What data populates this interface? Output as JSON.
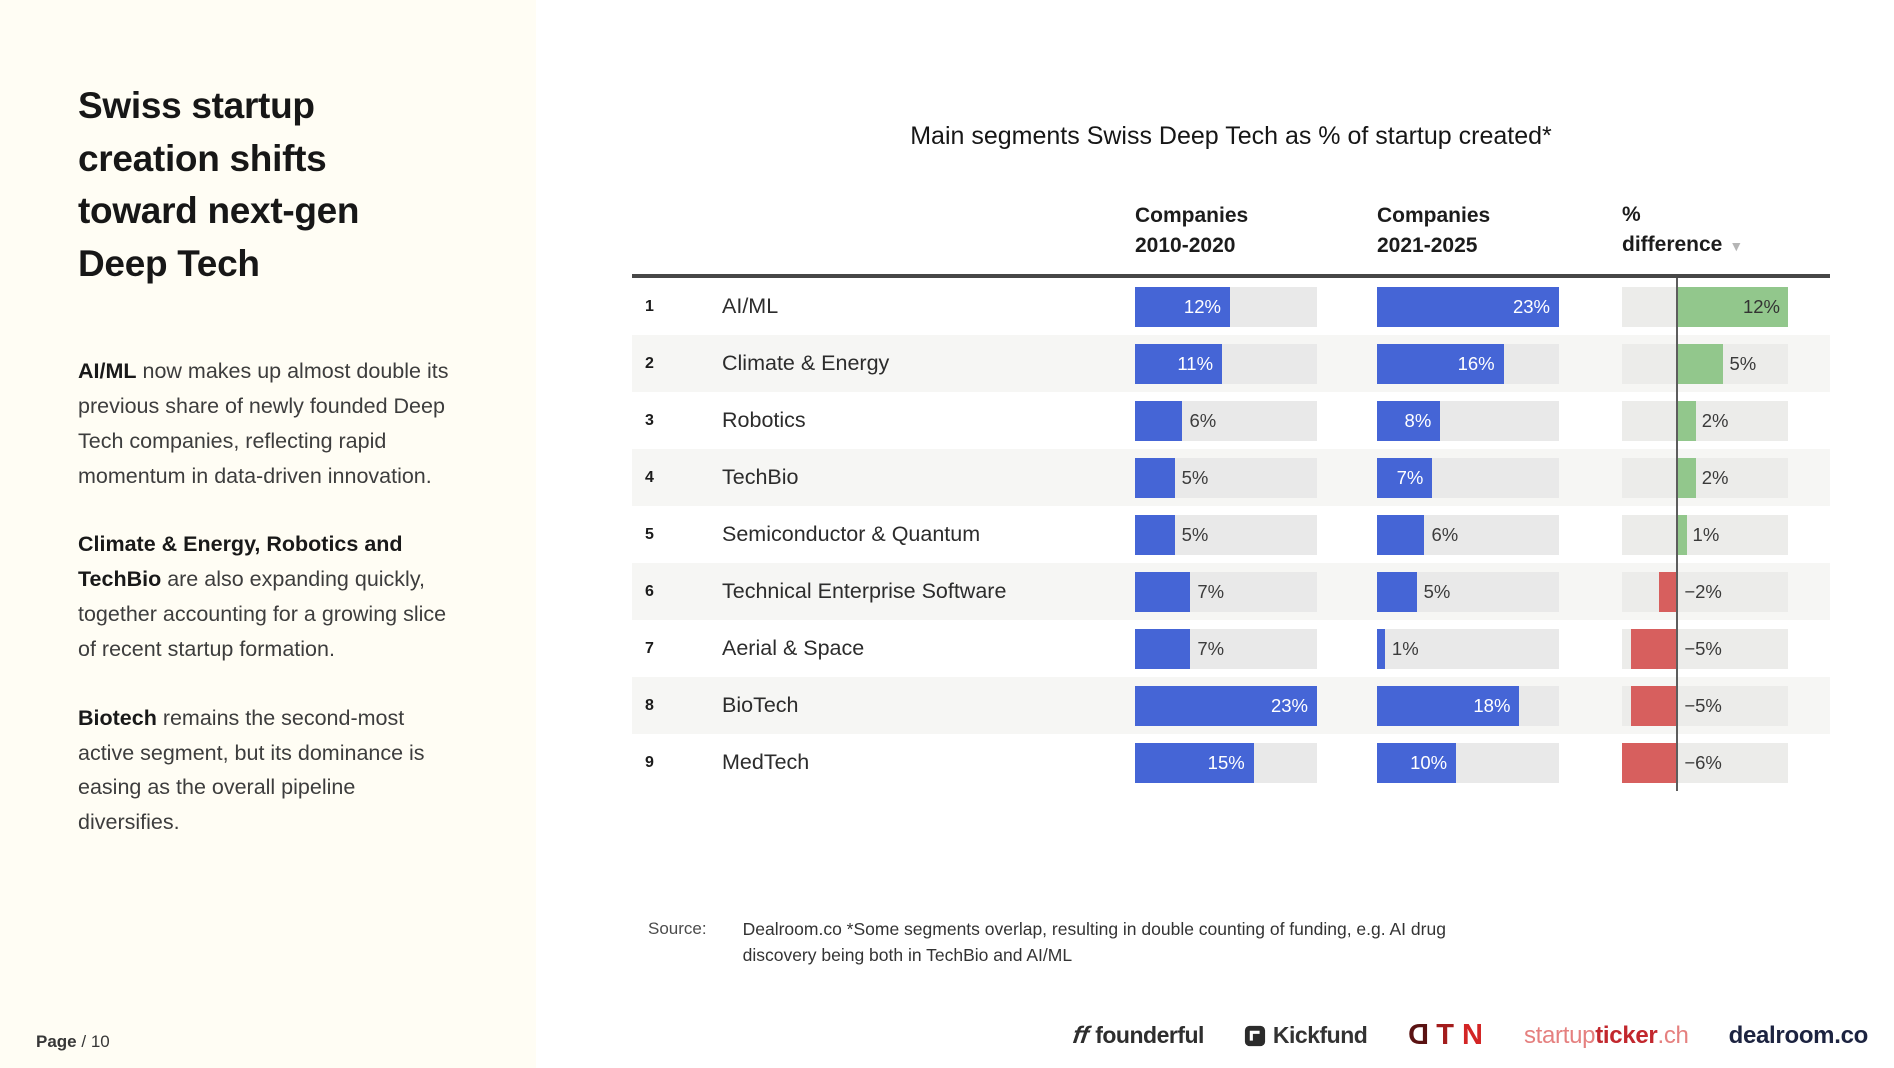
{
  "sidebar": {
    "title": "Swiss startup creation shifts toward next-gen Deep Tech",
    "paragraphs": [
      {
        "bold": "AI/ML",
        "text": " now makes up almost double its previous share of newly founded Deep Tech companies, reflecting rapid momentum in data-driven innovation."
      },
      {
        "bold": "Climate & Energy, Robotics and TechBio",
        "text": " are also expanding quickly, together accounting for a growing slice of recent startup formation."
      },
      {
        "bold": "Biotech",
        "text": " remains the second-most active segment, but its dominance is easing as the overall pipeline diversifies."
      }
    ]
  },
  "page": {
    "label_bold": "Page",
    "label_rest": "/ 10"
  },
  "chart": {
    "title": "Main segments Swiss Deep Tech as % of startup created*",
    "sort_indicator": "▼"
  },
  "table": {
    "headers": [
      {
        "line1": "Companies",
        "line2": "2010-2020"
      },
      {
        "line1": "Companies",
        "line2": "2021-2025"
      },
      {
        "line1": "%",
        "line2": "difference"
      }
    ],
    "rows": [
      {
        "num": "1",
        "name": "AI/ML",
        "c1": {
          "v": 12,
          "label": "12%",
          "inside": true
        },
        "c2": {
          "v": 23,
          "label": "23%",
          "inside": true
        },
        "diff": {
          "v": 12,
          "label": "12%",
          "inside": true
        }
      },
      {
        "num": "2",
        "name": "Climate & Energy",
        "c1": {
          "v": 11,
          "label": "11%",
          "inside": true
        },
        "c2": {
          "v": 16,
          "label": "16%",
          "inside": true
        },
        "diff": {
          "v": 5,
          "label": "5%",
          "inside": false
        }
      },
      {
        "num": "3",
        "name": "Robotics",
        "c1": {
          "v": 6,
          "label": "6%",
          "inside": false
        },
        "c2": {
          "v": 8,
          "label": "8%",
          "inside": true
        },
        "diff": {
          "v": 2,
          "label": "2%",
          "inside": false
        }
      },
      {
        "num": "4",
        "name": "TechBio",
        "c1": {
          "v": 5,
          "label": "5%",
          "inside": false
        },
        "c2": {
          "v": 7,
          "label": "7%",
          "inside": true
        },
        "diff": {
          "v": 2,
          "label": "2%",
          "inside": false
        }
      },
      {
        "num": "5",
        "name": "Semiconductor & Quantum",
        "c1": {
          "v": 5,
          "label": "5%",
          "inside": false
        },
        "c2": {
          "v": 6,
          "label": "6%",
          "inside": false
        },
        "diff": {
          "v": 1,
          "label": "1%",
          "inside": false
        }
      },
      {
        "num": "6",
        "name": "Technical Enterprise Software",
        "c1": {
          "v": 7,
          "label": "7%",
          "inside": false
        },
        "c2": {
          "v": 5,
          "label": "5%",
          "inside": false
        },
        "diff": {
          "v": -2,
          "label": "−2%",
          "inside": false
        }
      },
      {
        "num": "7",
        "name": "Aerial & Space",
        "c1": {
          "v": 7,
          "label": "7%",
          "inside": false
        },
        "c2": {
          "v": 1,
          "label": "1%",
          "inside": false
        },
        "diff": {
          "v": -5,
          "label": "−5%",
          "inside": false
        }
      },
      {
        "num": "8",
        "name": "BioTech",
        "c1": {
          "v": 23,
          "label": "23%",
          "inside": true
        },
        "c2": {
          "v": 18,
          "label": "18%",
          "inside": true
        },
        "diff": {
          "v": -5,
          "label": "−5%",
          "inside": false
        }
      },
      {
        "num": "9",
        "name": "MedTech",
        "c1": {
          "v": 15,
          "label": "15%",
          "inside": true
        },
        "c2": {
          "v": 10,
          "label": "10%",
          "inside": true
        },
        "diff": {
          "v": -6,
          "label": "−6%",
          "inside": false
        }
      }
    ]
  },
  "chart_data": {
    "type": "bar",
    "title": "Main segments Swiss Deep Tech as % of startup created*",
    "categories": [
      "AI/ML",
      "Climate & Energy",
      "Robotics",
      "TechBio",
      "Semiconductor & Quantum",
      "Technical Enterprise Software",
      "Aerial & Space",
      "BioTech",
      "MedTech"
    ],
    "series": [
      {
        "name": "Companies 2010-2020",
        "values": [
          12,
          11,
          6,
          5,
          5,
          7,
          7,
          23,
          15
        ]
      },
      {
        "name": "Companies 2021-2025",
        "values": [
          23,
          16,
          8,
          7,
          6,
          5,
          1,
          18,
          10
        ]
      },
      {
        "name": "% difference",
        "values": [
          12,
          5,
          2,
          2,
          1,
          -2,
          -5,
          -5,
          -6
        ]
      }
    ],
    "value_format": "percent",
    "bar_scale_max": 23,
    "diff_range": [
      -6,
      12
    ],
    "sorted_by": "% difference descending",
    "legend_position": "column headers",
    "grid": false
  },
  "source": {
    "label": "Source:",
    "text": "Dealroom.co *Some segments overlap, resulting in double counting of funding, e.g. AI drug discovery being both in TechBio and AI/ML"
  },
  "footer": {
    "logos": [
      {
        "id": "founderful",
        "text": "founderful"
      },
      {
        "id": "kickfund",
        "text": "Kickfund"
      },
      {
        "id": "dtn",
        "letters": [
          "D",
          "T",
          "N"
        ]
      },
      {
        "id": "startupticker",
        "part1": "startup",
        "part2": "ticker",
        "part3": ".ch"
      },
      {
        "id": "dealroom",
        "text": "dealroom.co"
      }
    ]
  },
  "colors": {
    "bar_blue": "#4565d6",
    "diff_positive_green": "#92c78c",
    "diff_negative_red": "#d75f5e",
    "track_gray": "#e9e9e9",
    "sidebar_cream": "#fffdf4",
    "header_rule": "#474747"
  }
}
